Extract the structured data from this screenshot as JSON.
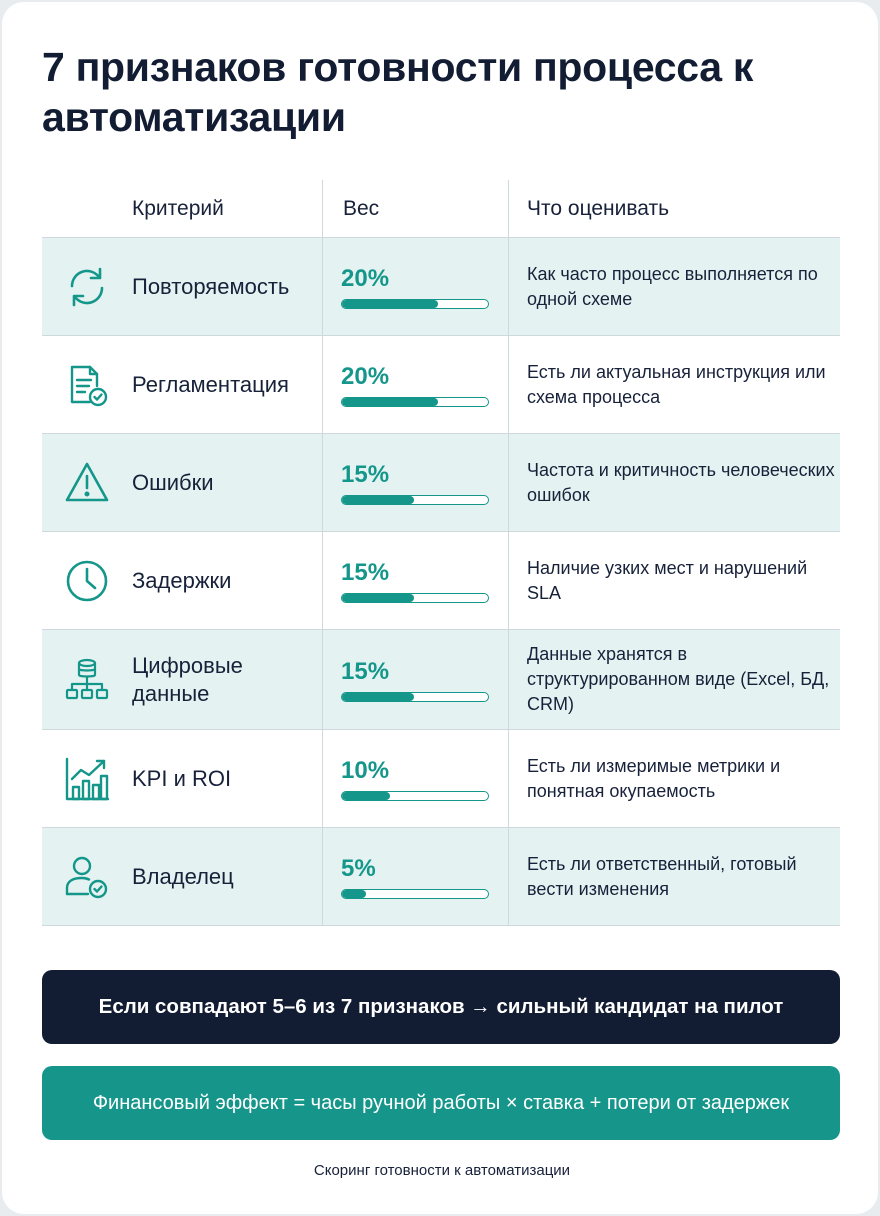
{
  "title": "7 признаков готовности процесса к автоматизации",
  "table": {
    "headers": {
      "criterion": "Критерий",
      "weight": "Вес",
      "evaluate": "Что оценивать"
    },
    "rows": [
      {
        "icon": "repeat-icon",
        "criterion": "Повторяемость",
        "weight": "20%",
        "weight_value": 0.2,
        "desc": "Как часто процесс выполняется по одной схеме"
      },
      {
        "icon": "document-check-icon",
        "criterion": "Регламентация",
        "weight": "20%",
        "weight_value": 0.2,
        "desc": "Есть ли актуальная инструкция или схема процесса"
      },
      {
        "icon": "warning-icon",
        "criterion": "Ошибки",
        "weight": "15%",
        "weight_value": 0.15,
        "desc": "Частота и критичность человеческих ошибок"
      },
      {
        "icon": "clock-icon",
        "criterion": "Задержки",
        "weight": "15%",
        "weight_value": 0.15,
        "desc": "Наличие узких мест и нарушений SLA"
      },
      {
        "icon": "database-network-icon",
        "criterion": "Цифровые данные",
        "weight": "15%",
        "weight_value": 0.15,
        "desc": "Данные хранятся в структурированном виде (Excel, БД, CRM)"
      },
      {
        "icon": "growth-chart-icon",
        "criterion": "KPI и ROI",
        "weight": "10%",
        "weight_value": 0.1,
        "desc": "Есть ли измеримые метрики и понятная окупаемость"
      },
      {
        "icon": "user-check-icon",
        "criterion": "Владелец",
        "weight": "5%",
        "weight_value": 0.05,
        "desc": "Есть ли ответственный, готовый вести изменения"
      }
    ]
  },
  "banner_dark": "Если совпадают 5–6 из 7 признаков → сильный кандидат на пилот",
  "banner_teal": "Финансовый эффект = часы ручной работы × ставка + потери от задержек",
  "caption": "Скоринг готовности к автоматизации",
  "colors": {
    "accent": "#14968a",
    "dark": "#121c33",
    "row_shade": "#e4f3f2"
  }
}
